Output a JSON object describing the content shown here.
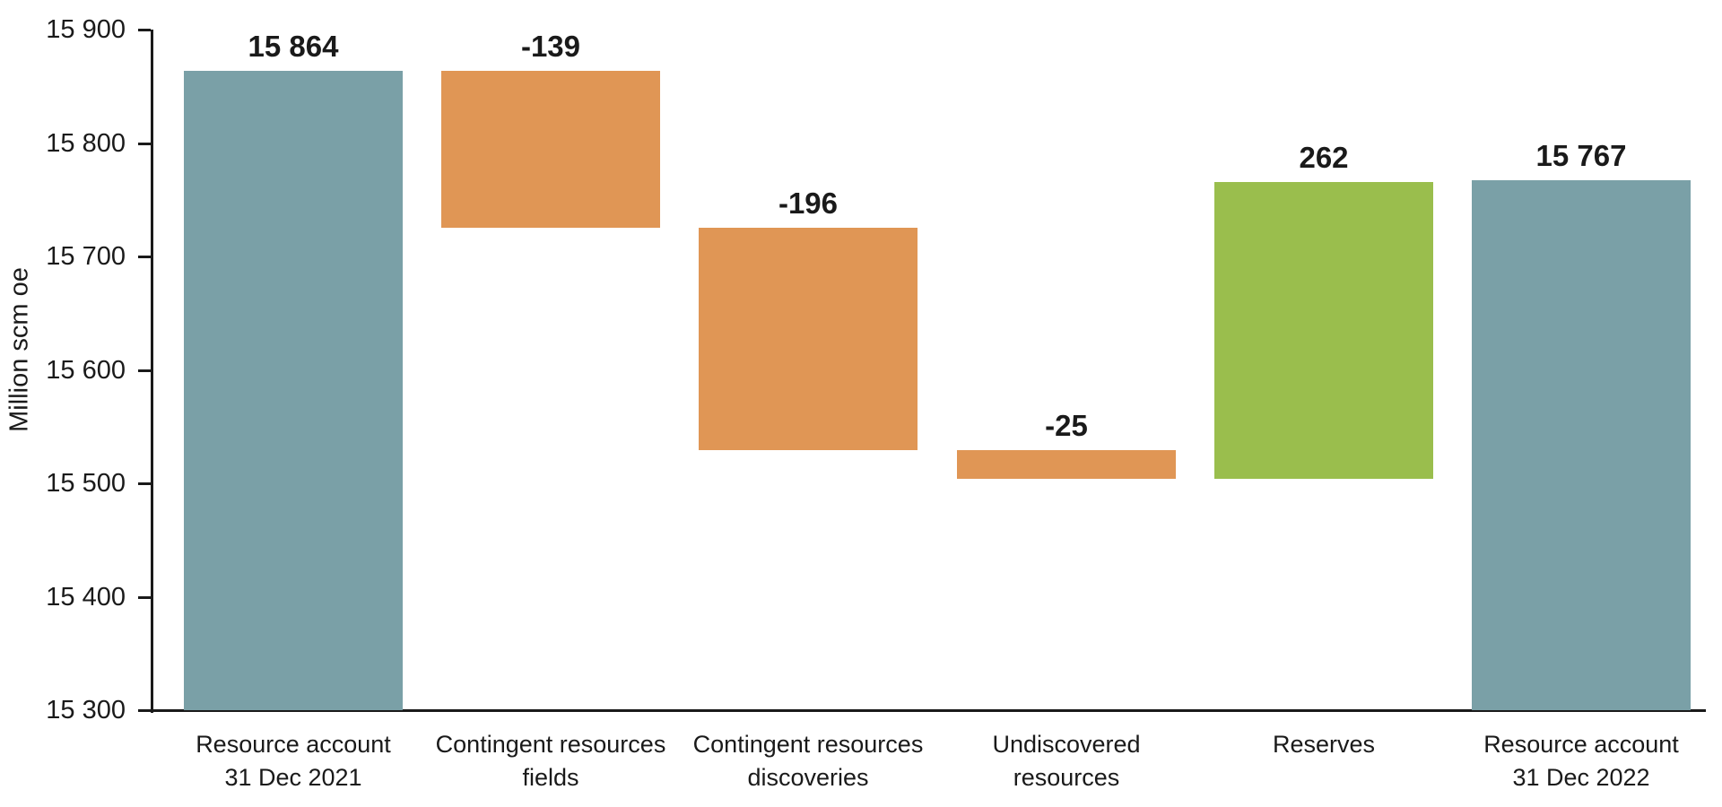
{
  "chart_data": {
    "type": "bar",
    "subtype": "waterfall",
    "title": "",
    "ylabel": "Million scm oe",
    "ylim": [
      15300,
      15900
    ],
    "grid": false,
    "legend": "none",
    "yticks": [
      {
        "value": 15300,
        "label": "15 300"
      },
      {
        "value": 15400,
        "label": "15 400"
      },
      {
        "value": 15500,
        "label": "15 500"
      },
      {
        "value": 15600,
        "label": "15 600"
      },
      {
        "value": 15700,
        "label": "15 700"
      },
      {
        "value": 15800,
        "label": "15 800"
      },
      {
        "value": 15900,
        "label": "15 900"
      }
    ],
    "palette": {
      "total": "#7aa0a7",
      "decrease": "#e09655",
      "increase": "#9abe4d"
    },
    "text_color": "#1a1a1a",
    "bars": [
      {
        "category_lines": [
          "Resource account",
          "31 Dec 2021"
        ],
        "role": "total",
        "value": 15864,
        "value_display": "15 864"
      },
      {
        "category_lines": [
          "Contingent resources",
          "fields"
        ],
        "role": "decrease",
        "value": -139,
        "value_display": "-139"
      },
      {
        "category_lines": [
          "Contingent resources",
          "discoveries"
        ],
        "role": "decrease",
        "value": -196,
        "value_display": "-196"
      },
      {
        "category_lines": [
          "Undiscovered",
          "resources"
        ],
        "role": "decrease",
        "value": -25,
        "value_display": "-25"
      },
      {
        "category_lines": [
          "Reserves"
        ],
        "role": "increase",
        "value": 262,
        "value_display": "262"
      },
      {
        "category_lines": [
          "Resource account",
          "31 Dec 2022"
        ],
        "role": "total",
        "value": 15767,
        "value_display": "15 767"
      }
    ]
  }
}
